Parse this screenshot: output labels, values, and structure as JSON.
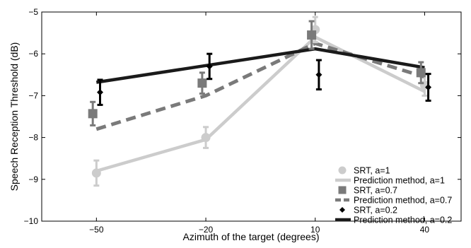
{
  "chart_data": {
    "type": "line",
    "xlabel": "Azimuth of the target (degrees)",
    "ylabel": "Speech Reception Threshold (dB)",
    "x": [
      -50,
      -20,
      10,
      40
    ],
    "x_tick_labels": [
      "−50",
      "−20",
      "10",
      "40"
    ],
    "xlim": [
      -65,
      50
    ],
    "ylim": [
      -10,
      -5
    ],
    "y_ticks": [
      -10,
      -9,
      -8,
      -7,
      -6,
      -5
    ],
    "y_tick_labels": [
      "−10",
      "−9",
      "−8",
      "−7",
      "−6",
      "−5"
    ],
    "grid": false,
    "legend_position": "bottom-right",
    "series": [
      {
        "name": "SRT, a=1",
        "kind": "points",
        "marker": "circle",
        "color": "#cccccc",
        "x": [
          -50,
          -20,
          10,
          40
        ],
        "values": [
          -8.85,
          -8.0,
          -5.42,
          -6.75
        ],
        "errors": [
          0.3,
          0.25,
          0.3,
          0.25
        ]
      },
      {
        "name": "Prediction method, a=1",
        "kind": "line",
        "style": "solid",
        "color": "#cccccc",
        "x": [
          -50,
          -20,
          10,
          40
        ],
        "values": [
          -8.8,
          -8.05,
          -5.6,
          -6.9
        ]
      },
      {
        "name": "SRT, a=0.7",
        "kind": "points",
        "marker": "square",
        "color": "#7a7a7a",
        "x": [
          -51,
          -21,
          9,
          39
        ],
        "values": [
          -7.43,
          -6.7,
          -5.55,
          -6.45
        ],
        "errors": [
          0.28,
          0.25,
          0.33,
          0.25
        ]
      },
      {
        "name": "Prediction method, a=0.7",
        "kind": "line",
        "style": "dashed",
        "color": "#7a7a7a",
        "x": [
          -50,
          -20,
          10,
          40
        ],
        "values": [
          -7.8,
          -7.0,
          -5.75,
          -6.55
        ]
      },
      {
        "name": "SRT, a=0.2",
        "kind": "points",
        "marker": "diamond",
        "color": "#000000",
        "x": [
          -49,
          -19,
          11,
          41
        ],
        "values": [
          -6.92,
          -6.3,
          -6.5,
          -6.8
        ],
        "errors": [
          0.3,
          0.3,
          0.35,
          0.32
        ]
      },
      {
        "name": "Prediction method, a=0.2",
        "kind": "line",
        "style": "solid",
        "color": "#1a1a1a",
        "x": [
          -50,
          -20,
          10,
          40
        ],
        "values": [
          -6.68,
          -6.28,
          -5.88,
          -6.33
        ]
      }
    ]
  }
}
